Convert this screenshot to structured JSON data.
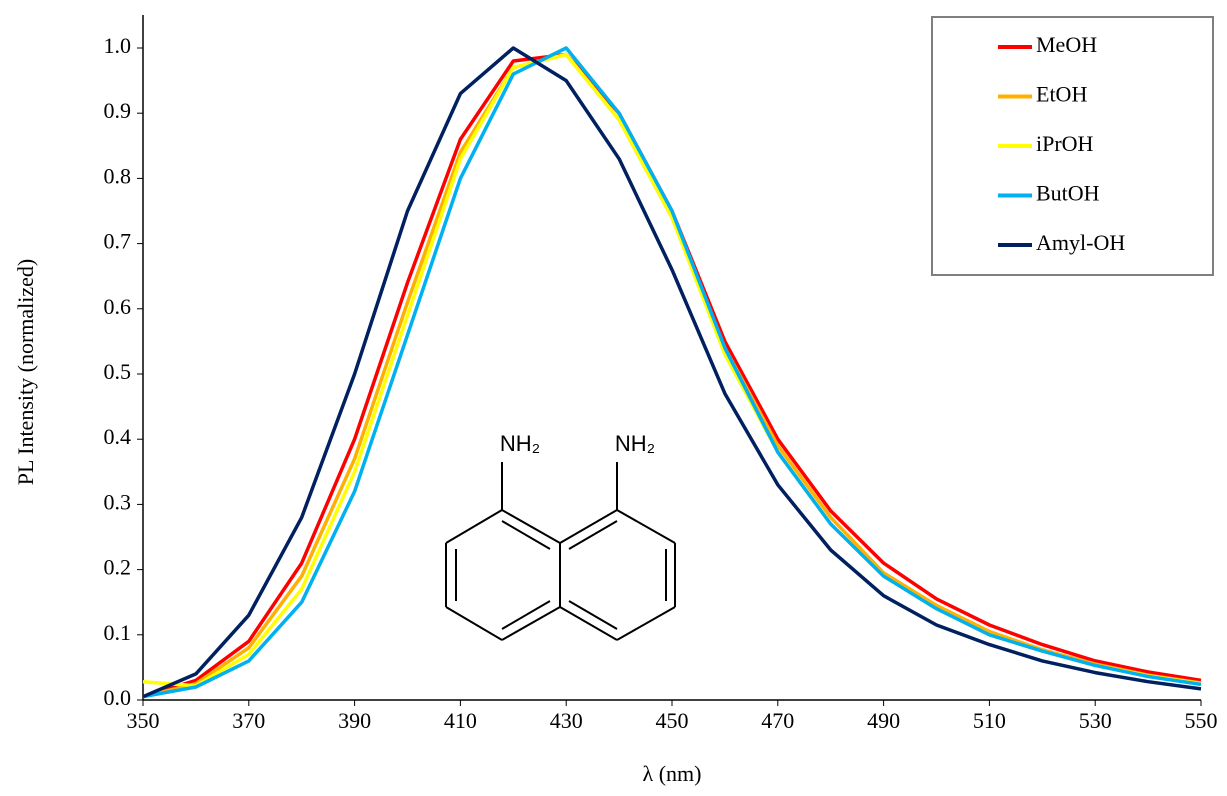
{
  "chart_data": {
    "type": "line",
    "xlabel": "λ (nm)",
    "ylabel": "PL Intensity (normalized)",
    "x": [
      350,
      360,
      370,
      380,
      390,
      400,
      410,
      420,
      430,
      440,
      450,
      460,
      470,
      480,
      490,
      500,
      510,
      520,
      530,
      540,
      550
    ],
    "series": [
      {
        "name": "MeOH",
        "color": "#ff0000",
        "values": [
          0.005,
          0.03,
          0.09,
          0.21,
          0.4,
          0.64,
          0.86,
          0.98,
          0.99,
          0.9,
          0.75,
          0.55,
          0.4,
          0.29,
          0.21,
          0.155,
          0.115,
          0.085,
          0.06,
          0.043,
          0.03
        ]
      },
      {
        "name": "EtOH",
        "color": "#ffb000",
        "values": [
          0.005,
          0.025,
          0.08,
          0.19,
          0.37,
          0.61,
          0.84,
          0.97,
          0.99,
          0.89,
          0.74,
          0.54,
          0.39,
          0.28,
          0.195,
          0.145,
          0.105,
          0.077,
          0.055,
          0.038,
          0.026
        ]
      },
      {
        "name": "iPrOH",
        "color": "#ffff00",
        "values": [
          0.028,
          0.022,
          0.07,
          0.17,
          0.35,
          0.59,
          0.83,
          0.97,
          0.99,
          0.89,
          0.74,
          0.53,
          0.38,
          0.27,
          0.19,
          0.14,
          0.1,
          0.075,
          0.053,
          0.037,
          0.025
        ]
      },
      {
        "name": "ButOH",
        "color": "#00b0f0",
        "values": [
          0.005,
          0.02,
          0.06,
          0.15,
          0.32,
          0.56,
          0.8,
          0.96,
          1.0,
          0.9,
          0.75,
          0.54,
          0.38,
          0.27,
          0.19,
          0.14,
          0.1,
          0.075,
          0.053,
          0.036,
          0.024
        ]
      },
      {
        "name": "Amyl-OH",
        "color": "#002060",
        "values": [
          0.005,
          0.04,
          0.13,
          0.28,
          0.5,
          0.75,
          0.93,
          1.0,
          0.95,
          0.83,
          0.66,
          0.47,
          0.33,
          0.23,
          0.16,
          0.115,
          0.085,
          0.06,
          0.042,
          0.028,
          0.017
        ]
      }
    ],
    "xlim": [
      350,
      550
    ],
    "xticks": [
      350,
      370,
      390,
      410,
      430,
      450,
      470,
      490,
      510,
      530,
      550
    ],
    "ylim": [
      0,
      1
    ],
    "yticks": [
      {
        "value": 0,
        "label": "0.0"
      },
      0.1,
      0.2,
      0.3,
      0.4,
      0.5,
      0.6,
      0.7,
      0.8,
      0.9,
      {
        "value": 1,
        "label": "1.0"
      }
    ],
    "legend": "upper right",
    "annotations": [
      "NH₂",
      "NH₂"
    ]
  }
}
